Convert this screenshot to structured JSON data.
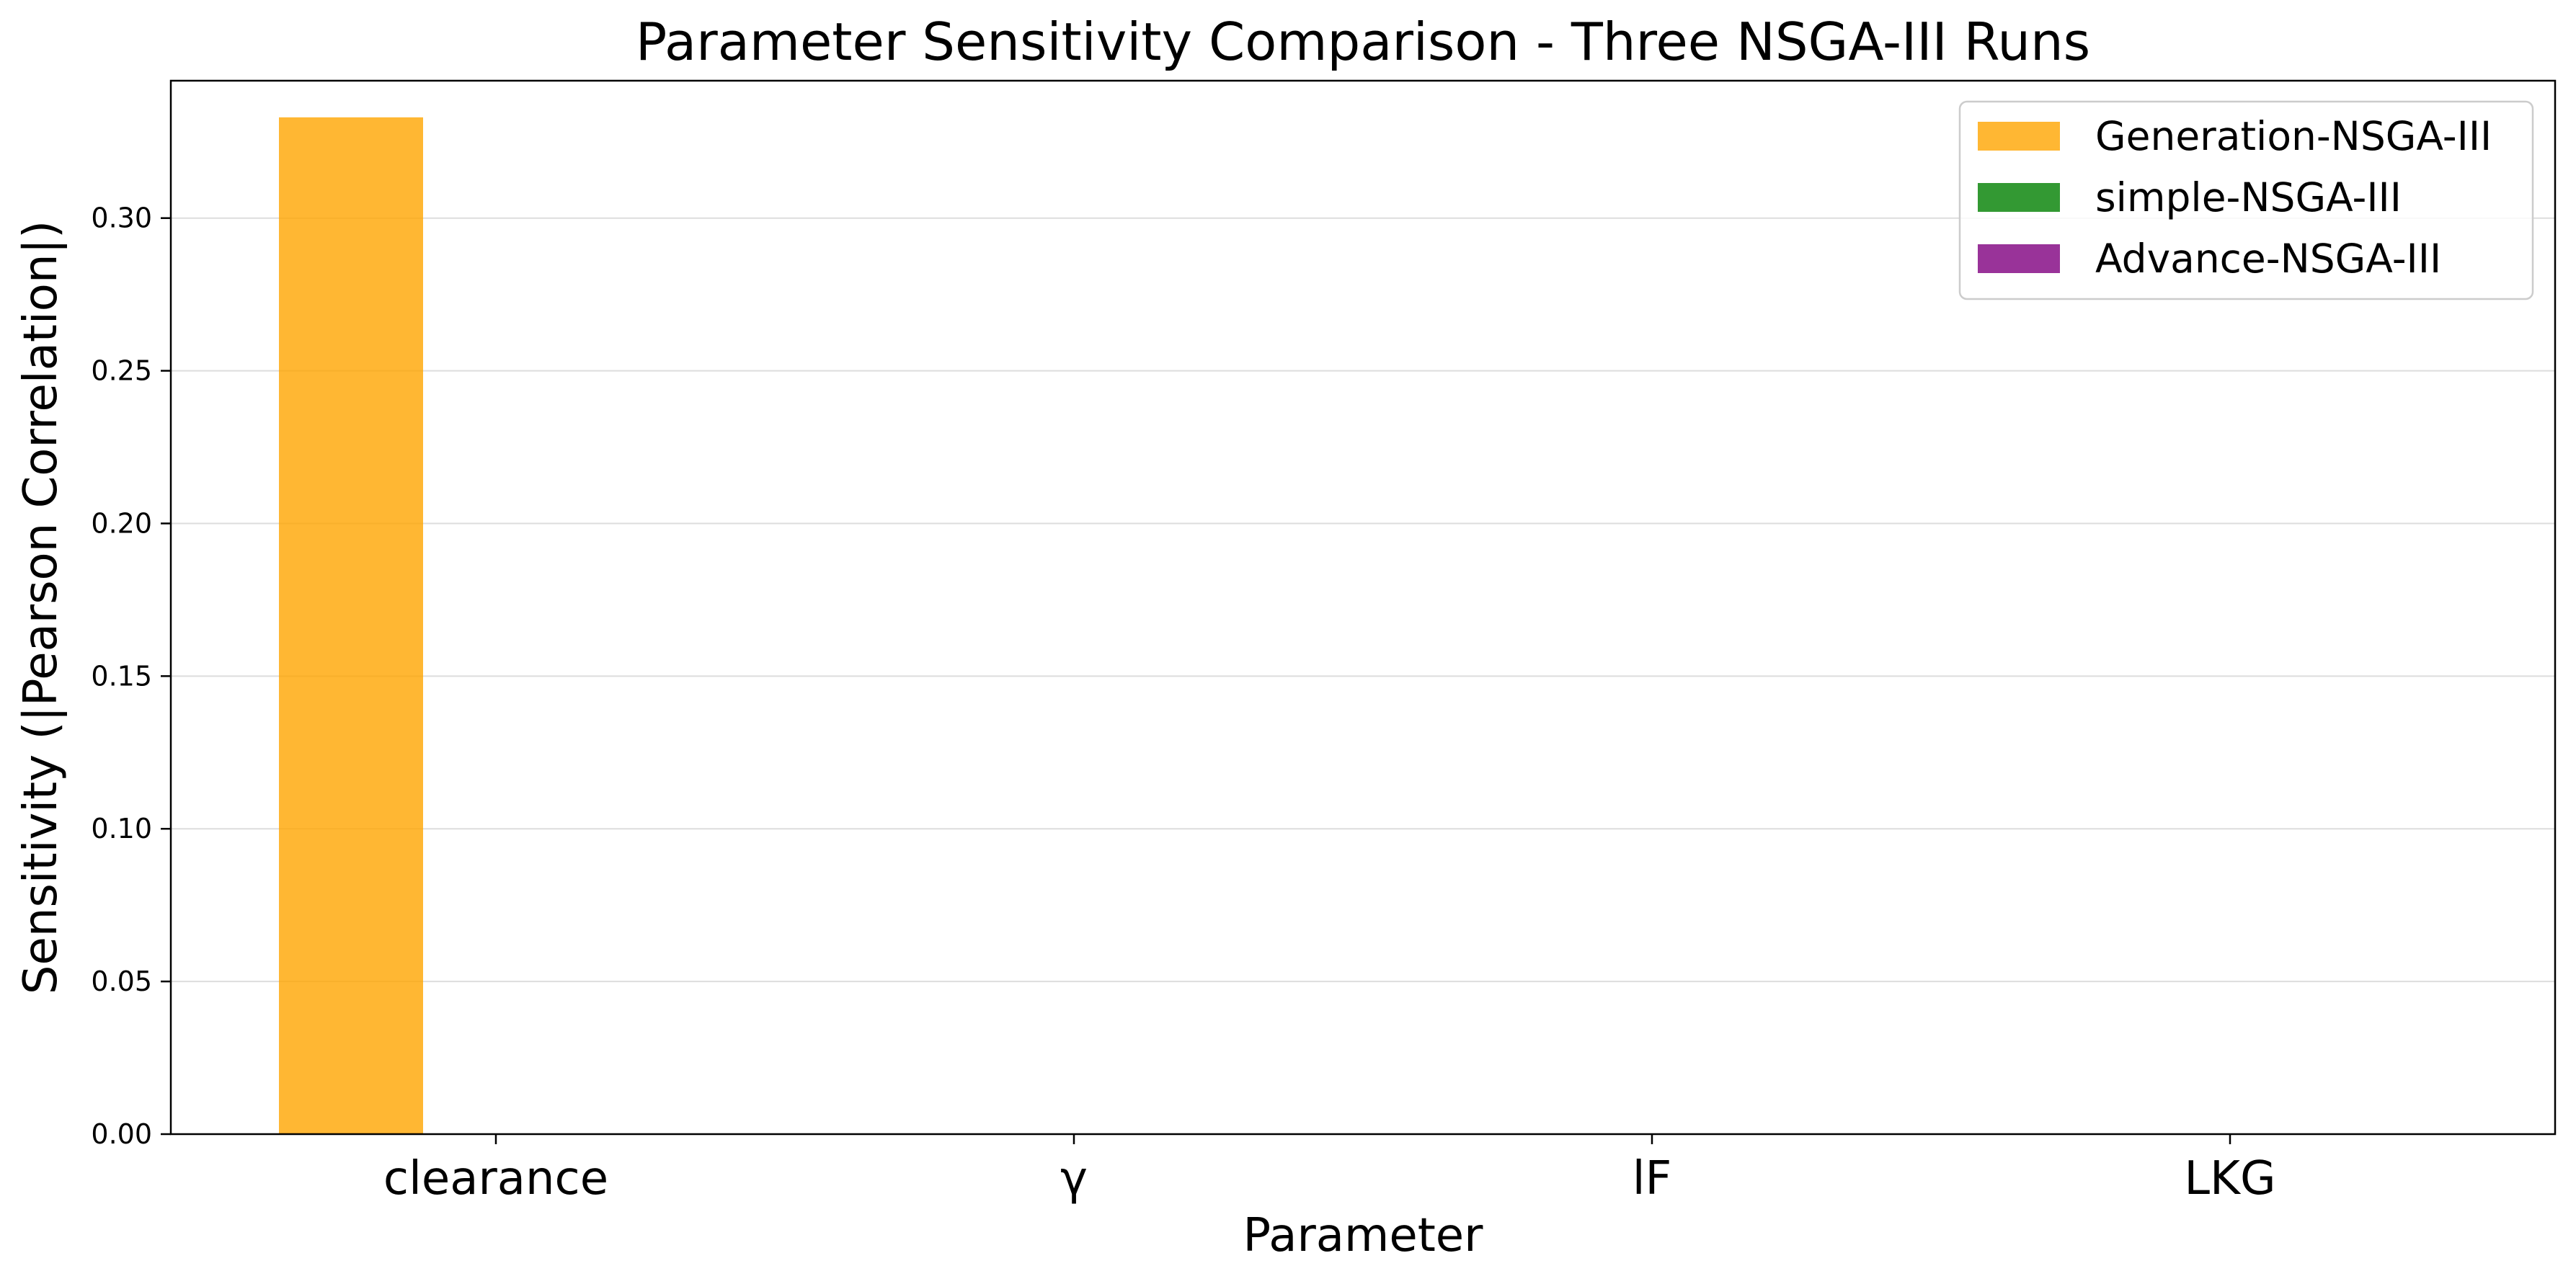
{
  "chart_data": {
    "type": "bar",
    "title": "Parameter Sensitivity Comparison - Three NSGA-III Runs",
    "xlabel": "Parameter",
    "ylabel": "Sensitivity (|Pearson Correlation|)",
    "categories": [
      "clearance",
      "γ",
      "lF",
      "LKG"
    ],
    "ylim": [
      0,
      0.345
    ],
    "yticks": [
      "0.00",
      "0.05",
      "0.10",
      "0.15",
      "0.20",
      "0.25",
      "0.30"
    ],
    "ytick_values": [
      0,
      0.05,
      0.1,
      0.15,
      0.2,
      0.25,
      0.3
    ],
    "grid": "y",
    "legend_position": "top-right",
    "series": [
      {
        "name": "Generation-NSGA-III",
        "color": "#ffa500",
        "values": [
          0.333,
          0,
          0,
          0
        ]
      },
      {
        "name": "simple-NSGA-III",
        "color": "#008000",
        "values": [
          0,
          0,
          0,
          0
        ]
      },
      {
        "name": "Advance-NSGA-III",
        "color": "#800080",
        "values": [
          0,
          0,
          0,
          0
        ]
      }
    ]
  }
}
